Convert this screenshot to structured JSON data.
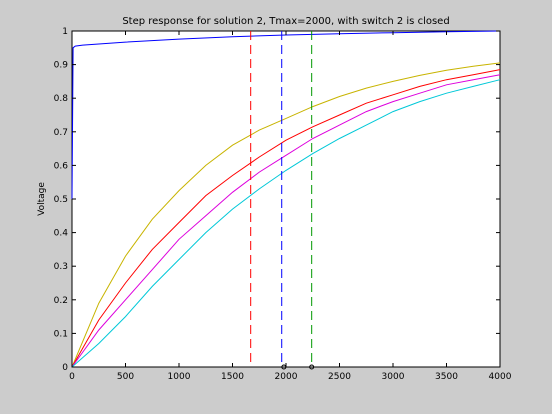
{
  "chart_data": {
    "type": "line",
    "title": "Step response for solution 2, Tmax=2000, with switch 2 is closed",
    "xlabel": "",
    "ylabel": "Voltage",
    "xlim": [
      0,
      4000
    ],
    "ylim": [
      0,
      1
    ],
    "xticks": [
      0,
      500,
      1000,
      1500,
      2000,
      2500,
      3000,
      3500,
      4000
    ],
    "yticks": [
      0,
      0.1,
      0.2,
      0.3,
      0.4,
      0.5,
      0.6,
      0.7,
      0.8,
      0.9,
      1
    ],
    "grid": false,
    "background": "#cccccc",
    "axes_background": "#ffffff",
    "series": [
      {
        "color": "#0000ff",
        "x": [
          0,
          10,
          30,
          100,
          500,
          1000,
          1500,
          2000,
          2500,
          3000,
          3500,
          4000
        ],
        "y": [
          0.5,
          0.95,
          0.955,
          0.958,
          0.967,
          0.976,
          0.983,
          0.988,
          0.992,
          0.995,
          0.998,
          1.0
        ]
      },
      {
        "color": "#c8b400",
        "x": [
          0,
          250,
          500,
          750,
          1000,
          1250,
          1500,
          1750,
          2000,
          2250,
          2500,
          2750,
          3000,
          3250,
          3500,
          3750,
          4000
        ],
        "y": [
          0,
          0.19,
          0.33,
          0.44,
          0.525,
          0.6,
          0.66,
          0.705,
          0.74,
          0.775,
          0.805,
          0.83,
          0.85,
          0.868,
          0.883,
          0.895,
          0.905
        ]
      },
      {
        "color": "#ff0000",
        "x": [
          0,
          250,
          500,
          750,
          1000,
          1250,
          1500,
          1750,
          2000,
          2250,
          2500,
          2750,
          3000,
          3250,
          3500,
          3750,
          4000
        ],
        "y": [
          0,
          0.14,
          0.25,
          0.35,
          0.43,
          0.51,
          0.57,
          0.625,
          0.675,
          0.715,
          0.75,
          0.785,
          0.81,
          0.835,
          0.855,
          0.87,
          0.885
        ]
      },
      {
        "color": "#dd00dd",
        "x": [
          0,
          250,
          500,
          750,
          1000,
          1250,
          1500,
          1750,
          2000,
          2250,
          2500,
          2750,
          3000,
          3250,
          3500,
          3750,
          4000
        ],
        "y": [
          0,
          0.11,
          0.2,
          0.29,
          0.38,
          0.45,
          0.52,
          0.58,
          0.63,
          0.68,
          0.72,
          0.76,
          0.79,
          0.815,
          0.84,
          0.855,
          0.87
        ]
      },
      {
        "color": "#00c8d8",
        "x": [
          0,
          250,
          500,
          750,
          1000,
          1250,
          1500,
          1750,
          2000,
          2250,
          2500,
          2750,
          3000,
          3250,
          3500,
          3750,
          4000
        ],
        "y": [
          0,
          0.07,
          0.15,
          0.24,
          0.32,
          0.4,
          0.47,
          0.53,
          0.585,
          0.635,
          0.68,
          0.72,
          0.76,
          0.79,
          0.815,
          0.835,
          0.855
        ]
      }
    ],
    "vlines": [
      {
        "x": 1670,
        "color": "#ff0000"
      },
      {
        "x": 1960,
        "color": "#0000ff"
      },
      {
        "x": 2240,
        "color": "#009900"
      }
    ],
    "markers": [
      {
        "x": 1980,
        "y": 0
      },
      {
        "x": 2240,
        "y": 0
      }
    ]
  }
}
